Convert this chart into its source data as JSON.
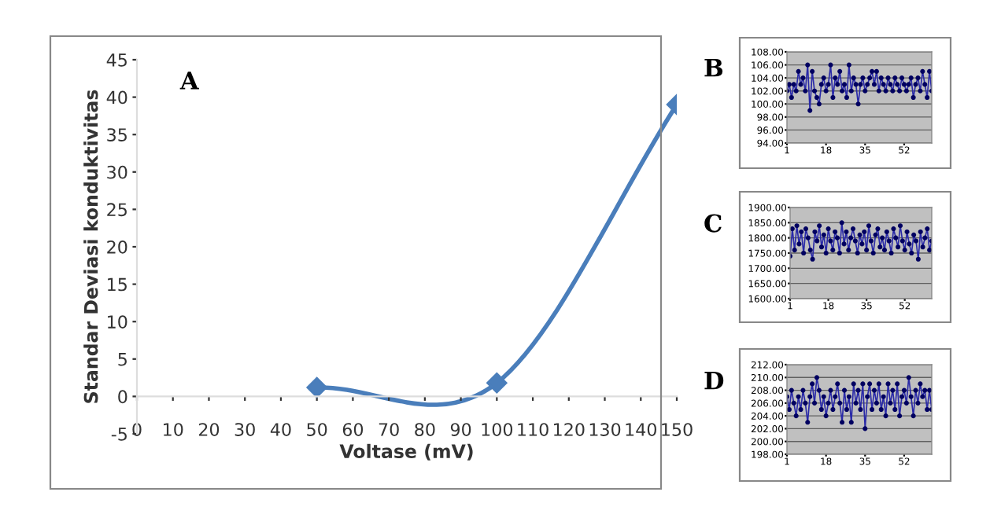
{
  "chart_data": [
    {
      "type": "line",
      "xlabel": "Voltase (mV)",
      "ylabel": "Standar Deviasi konduktivitas",
      "annotations": [
        "A"
      ],
      "marker": "diamond",
      "grid": false,
      "xlim": [
        0,
        150
      ],
      "ylim": [
        -5,
        45
      ],
      "xticks": [
        0,
        10,
        20,
        30,
        40,
        50,
        60,
        70,
        80,
        90,
        100,
        110,
        120,
        130,
        140,
        150
      ],
      "yticks": [
        -5,
        0,
        5,
        10,
        15,
        20,
        25,
        30,
        35,
        40,
        45
      ],
      "series": [
        {
          "color": "#4a7ebb",
          "x": [
            50,
            100,
            150
          ],
          "values": [
            1.2,
            1.8,
            39
          ]
        }
      ]
    },
    {
      "type": "line",
      "annotations": [
        "B"
      ],
      "marker": "circle",
      "grid": "y",
      "xlim": [
        1,
        64
      ],
      "ylim": [
        94,
        108
      ],
      "xticks": [
        1,
        18,
        35,
        52
      ],
      "yticks": [
        {
          "value": 94,
          "label": "94.00"
        },
        {
          "value": 96,
          "label": "96.00"
        },
        {
          "value": 98,
          "label": "98.00"
        },
        {
          "value": 100,
          "label": "100.00"
        },
        {
          "value": 102,
          "label": "102.00"
        },
        {
          "value": 104,
          "label": "104.00"
        },
        {
          "value": 106,
          "label": "106.00"
        },
        {
          "value": 108,
          "label": "108.00"
        }
      ],
      "series": [
        {
          "color": "#2a2aa8",
          "x": [
            1,
            2,
            3,
            4,
            5,
            6,
            7,
            8,
            9,
            10,
            11,
            12,
            13,
            14,
            15,
            16,
            17,
            18,
            19,
            20,
            21,
            22,
            23,
            24,
            25,
            26,
            27,
            28,
            29,
            30,
            31,
            32,
            33,
            34,
            35,
            36,
            37,
            38,
            39,
            40,
            41,
            42,
            43,
            44,
            45,
            46,
            47,
            48,
            49,
            50,
            51,
            52,
            53,
            54,
            55,
            56,
            57,
            58,
            59,
            60,
            61,
            62,
            63,
            64
          ],
          "values": [
            102,
            103,
            101,
            103,
            102,
            105,
            103,
            104,
            102,
            106,
            99,
            105,
            102,
            101,
            100,
            103,
            104,
            102,
            103,
            106,
            101,
            104,
            103,
            105,
            102,
            103,
            101,
            106,
            102,
            104,
            103,
            100,
            103,
            104,
            102,
            103,
            104,
            105,
            103,
            105,
            102,
            104,
            103,
            102,
            104,
            103,
            102,
            104,
            103,
            102,
            104,
            103,
            102,
            103,
            104,
            101,
            103,
            104,
            102,
            105,
            103,
            101,
            105,
            102
          ]
        }
      ]
    },
    {
      "type": "line",
      "annotations": [
        "C"
      ],
      "marker": "circle",
      "grid": "y",
      "xlim": [
        1,
        64
      ],
      "ylim": [
        1600,
        1900
      ],
      "xticks": [
        1,
        18,
        35,
        52
      ],
      "yticks": [
        {
          "value": 1600,
          "label": "1600.00"
        },
        {
          "value": 1650,
          "label": "1650.00"
        },
        {
          "value": 1700,
          "label": "1700.00"
        },
        {
          "value": 1750,
          "label": "1750.00"
        },
        {
          "value": 1800,
          "label": "1800.00"
        },
        {
          "value": 1850,
          "label": "1850.00"
        },
        {
          "value": 1900,
          "label": "1900.00"
        }
      ],
      "series": [
        {
          "color": "#2a2aa8",
          "x": [
            1,
            2,
            3,
            4,
            5,
            6,
            7,
            8,
            9,
            10,
            11,
            12,
            13,
            14,
            15,
            16,
            17,
            18,
            19,
            20,
            21,
            22,
            23,
            24,
            25,
            26,
            27,
            28,
            29,
            30,
            31,
            32,
            33,
            34,
            35,
            36,
            37,
            38,
            39,
            40,
            41,
            42,
            43,
            44,
            45,
            46,
            47,
            48,
            49,
            50,
            51,
            52,
            53,
            54,
            55,
            56,
            57,
            58,
            59,
            60,
            61,
            62,
            63,
            64
          ],
          "values": [
            1740,
            1830,
            1760,
            1840,
            1780,
            1820,
            1750,
            1830,
            1800,
            1760,
            1730,
            1820,
            1790,
            1840,
            1770,
            1810,
            1750,
            1830,
            1790,
            1760,
            1820,
            1800,
            1750,
            1850,
            1780,
            1820,
            1760,
            1800,
            1830,
            1790,
            1750,
            1810,
            1780,
            1820,
            1760,
            1840,
            1790,
            1750,
            1810,
            1830,
            1770,
            1800,
            1760,
            1820,
            1790,
            1750,
            1830,
            1800,
            1770,
            1840,
            1790,
            1760,
            1820,
            1780,
            1750,
            1810,
            1790,
            1730,
            1820,
            1770,
            1800,
            1830,
            1760,
            1790
          ]
        }
      ]
    },
    {
      "type": "line",
      "annotations": [
        "D"
      ],
      "marker": "circle",
      "grid": "y",
      "xlim": [
        1,
        64
      ],
      "ylim": [
        198,
        212
      ],
      "xticks": [
        1,
        18,
        35,
        52
      ],
      "yticks": [
        {
          "value": 198,
          "label": "198.00"
        },
        {
          "value": 200,
          "label": "200.00"
        },
        {
          "value": 202,
          "label": "202.00"
        },
        {
          "value": 204,
          "label": "204.00"
        },
        {
          "value": 206,
          "label": "206.00"
        },
        {
          "value": 208,
          "label": "208.00"
        },
        {
          "value": 210,
          "label": "210.00"
        },
        {
          "value": 212,
          "label": "212.00"
        }
      ],
      "series": [
        {
          "color": "#2a2aa8",
          "x": [
            1,
            2,
            3,
            4,
            5,
            6,
            7,
            8,
            9,
            10,
            11,
            12,
            13,
            14,
            15,
            16,
            17,
            18,
            19,
            20,
            21,
            22,
            23,
            24,
            25,
            26,
            27,
            28,
            29,
            30,
            31,
            32,
            33,
            34,
            35,
            36,
            37,
            38,
            39,
            40,
            41,
            42,
            43,
            44,
            45,
            46,
            47,
            48,
            49,
            50,
            51,
            52,
            53,
            54,
            55,
            56,
            57,
            58,
            59,
            60,
            61,
            62,
            63,
            64
          ],
          "values": [
            207,
            205,
            208,
            206,
            204,
            207,
            205,
            208,
            206,
            203,
            207,
            209,
            206,
            210,
            208,
            205,
            207,
            204,
            206,
            208,
            205,
            207,
            209,
            206,
            203,
            208,
            205,
            207,
            203,
            209,
            206,
            208,
            205,
            209,
            202,
            207,
            209,
            205,
            208,
            206,
            209,
            205,
            207,
            204,
            209,
            206,
            208,
            205,
            209,
            204,
            207,
            208,
            206,
            210,
            207,
            204,
            208,
            206,
            209,
            207,
            208,
            205,
            208,
            205
          ]
        }
      ]
    }
  ]
}
